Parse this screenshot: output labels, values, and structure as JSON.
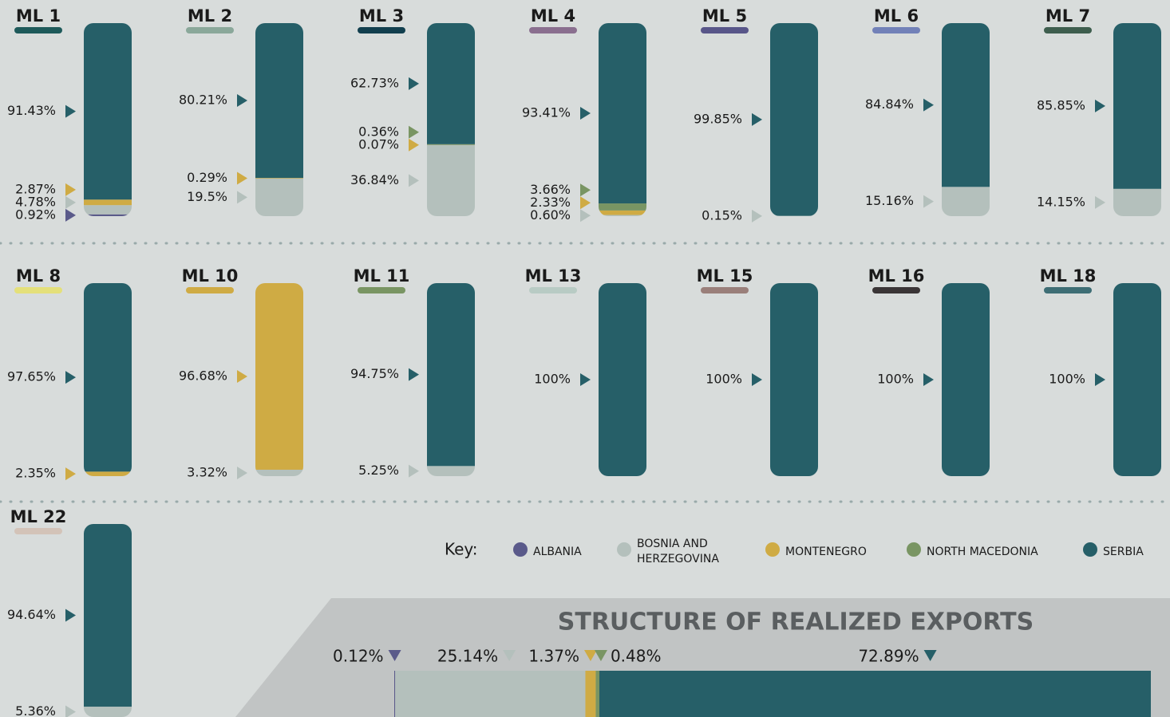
{
  "chart_data": [
    {
      "type": "stacked_column",
      "legend_title": "Key:",
      "categories": [
        "ML 1",
        "ML 2",
        "ML 3",
        "ML 4",
        "ML 5",
        "ML 6",
        "ML 7",
        "ML 8",
        "ML 10",
        "ML 11",
        "ML 13",
        "ML 15",
        "ML 16",
        "ML 18",
        "ML 22"
      ],
      "category_colors": [
        "#1e5a5a",
        "#8aa89a",
        "#123f4e",
        "#8a6f8f",
        "#585689",
        "#7281b8",
        "#3e5e4e",
        "#e4e07a",
        "#cfab44",
        "#799563",
        "#b8cbc4",
        "#9a7f7a",
        "#3a3536",
        "#3e6e75",
        "#d3c3b8"
      ],
      "series": [
        {
          "name": "ALBANIA",
          "color": "#5a5a8a",
          "values": [
            0.92,
            null,
            null,
            null,
            null,
            null,
            null,
            null,
            null,
            null,
            null,
            null,
            null,
            null,
            null
          ],
          "value_labels": [
            "0.92%",
            null,
            null,
            null,
            null,
            null,
            null,
            null,
            null,
            null,
            null,
            null,
            null,
            null,
            null
          ]
        },
        {
          "name": "BOSNIA AND HERZEGOVINA",
          "color": "#b4c0bc",
          "values": [
            4.78,
            19.5,
            36.84,
            0.6,
            0.15,
            15.16,
            14.15,
            null,
            3.32,
            5.25,
            null,
            null,
            null,
            null,
            5.36
          ],
          "value_labels": [
            "4.78%",
            "19.5%",
            "36.84%",
            "0.60%",
            "0.15%",
            "15.16%",
            "14.15%",
            null,
            "3.32%",
            "5.25%",
            null,
            null,
            null,
            null,
            "5.36%"
          ]
        },
        {
          "name": "MONTENEGRO",
          "color": "#cfab44",
          "values": [
            2.87,
            0.29,
            0.07,
            2.33,
            null,
            null,
            null,
            2.35,
            96.68,
            null,
            null,
            null,
            null,
            null,
            null
          ],
          "value_labels": [
            "2.87%",
            "0.29%",
            "0.07%",
            "2.33%",
            null,
            null,
            null,
            "2.35%",
            "96.68%",
            null,
            null,
            null,
            null,
            null,
            null
          ]
        },
        {
          "name": "NORTH MACEDONIA",
          "color": "#799563",
          "values": [
            null,
            null,
            0.36,
            3.66,
            null,
            null,
            null,
            null,
            null,
            null,
            null,
            null,
            null,
            null,
            null
          ],
          "value_labels": [
            null,
            null,
            "0.36%",
            "3.66%",
            null,
            null,
            null,
            null,
            null,
            null,
            null,
            null,
            null,
            null,
            null
          ]
        },
        {
          "name": "SERBIA",
          "color": "#265f68",
          "values": [
            91.43,
            80.21,
            62.73,
            93.41,
            99.85,
            84.84,
            85.85,
            97.65,
            null,
            94.75,
            100,
            100,
            100,
            100,
            94.64
          ],
          "value_labels": [
            "91.43%",
            "80.21%",
            "62.73%",
            "93.41%",
            "99.85%",
            "84.84%",
            "85.85%",
            "97.65%",
            null,
            "94.75%",
            "100%",
            "100%",
            "100%",
            "100%",
            "94.64%"
          ]
        }
      ]
    },
    {
      "type": "stacked_bar",
      "title": "STRUCTURE OF REALIZED EXPORTS",
      "values": [
        0.12,
        25.14,
        1.37,
        0.48,
        72.89
      ],
      "value_labels": [
        "0.12%",
        "25.14%",
        "1.37%",
        "0.48%",
        "72.89%"
      ],
      "colors": [
        "#5a5a8a",
        "#b4c0bc",
        "#cfab44",
        "#799563",
        "#265f68"
      ]
    }
  ]
}
